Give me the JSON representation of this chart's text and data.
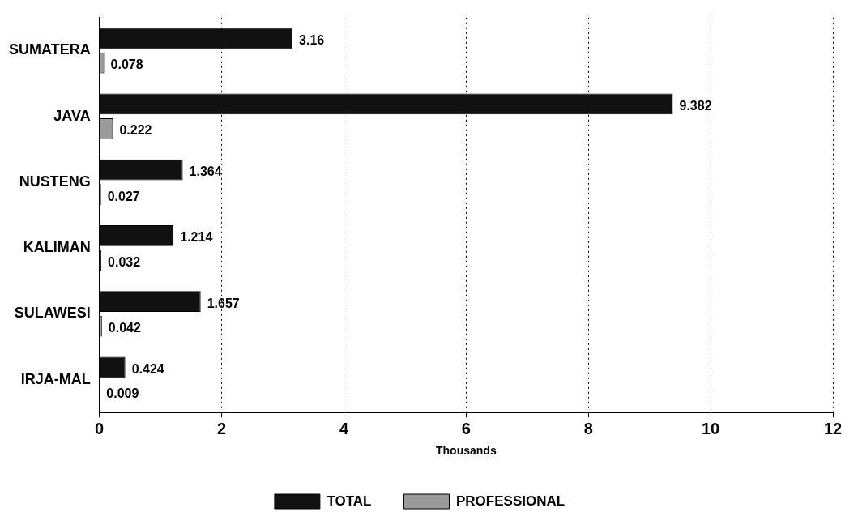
{
  "chart_data": {
    "type": "bar",
    "orientation": "horizontal",
    "categories": [
      "SUMATERA",
      "JAVA",
      "NUSTENG",
      "KALIMAN",
      "SULAWESI",
      "IRJA-MAL"
    ],
    "series": [
      {
        "name": "TOTAL",
        "color": "#111111",
        "values": [
          3.16,
          9.382,
          1.364,
          1.214,
          1.657,
          0.424
        ]
      },
      {
        "name": "PROFESSIONAL",
        "color": "#9a9a9a",
        "values": [
          0.078,
          0.222,
          0.027,
          0.032,
          0.042,
          0.009
        ]
      }
    ],
    "xlim": [
      0,
      12
    ],
    "xticks": [
      0,
      2,
      4,
      6,
      8,
      10,
      12
    ],
    "xlabel": "Thousands",
    "grid": "x",
    "legend": "bottom",
    "data_labels": true
  }
}
